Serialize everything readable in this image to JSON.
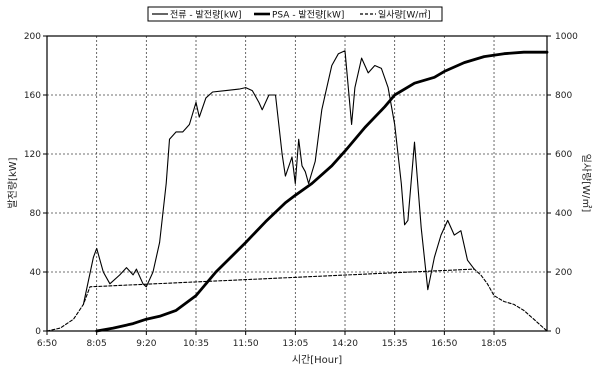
{
  "chart_data": {
    "type": "line",
    "title": "",
    "xlabel": "시간[Hour]",
    "ylabel": "발전량[kW]",
    "y2label": "일사량[W/㎡]",
    "x_ticks": [
      "6:50",
      "8:05",
      "9:20",
      "10:35",
      "11:50",
      "13:05",
      "14:20",
      "15:35",
      "16:50",
      "18:05"
    ],
    "xlim": [
      "6:50",
      "19:25"
    ],
    "ylim": [
      0,
      200
    ],
    "y_ticks": [
      0,
      40,
      80,
      120,
      160,
      200
    ],
    "y2lim": [
      0,
      1000
    ],
    "y2_ticks": [
      0,
      200,
      400,
      600,
      800,
      1000
    ],
    "grid": true,
    "legend_position": "top",
    "series": [
      {
        "name": "전류 - 발전량[kW]",
        "axis": "left",
        "style": "thin-solid",
        "color": "#000000",
        "points": [
          [
            "7:45",
            18
          ],
          [
            "8:00",
            50
          ],
          [
            "8:05",
            56
          ],
          [
            "8:15",
            40
          ],
          [
            "8:25",
            32
          ],
          [
            "8:40",
            38
          ],
          [
            "8:50",
            43
          ],
          [
            "9:00",
            38
          ],
          [
            "9:05",
            42
          ],
          [
            "9:15",
            32
          ],
          [
            "9:20",
            30
          ],
          [
            "9:30",
            40
          ],
          [
            "9:40",
            60
          ],
          [
            "9:50",
            100
          ],
          [
            "9:55",
            130
          ],
          [
            "10:05",
            135
          ],
          [
            "10:15",
            135
          ],
          [
            "10:25",
            140
          ],
          [
            "10:35",
            155
          ],
          [
            "10:40",
            145
          ],
          [
            "10:50",
            158
          ],
          [
            "11:00",
            162
          ],
          [
            "11:20",
            163
          ],
          [
            "11:40",
            164
          ],
          [
            "11:50",
            165
          ],
          [
            "12:00",
            163
          ],
          [
            "12:10",
            155
          ],
          [
            "12:15",
            150
          ],
          [
            "12:25",
            160
          ],
          [
            "12:35",
            160
          ],
          [
            "12:45",
            120
          ],
          [
            "12:50",
            105
          ],
          [
            "13:00",
            118
          ],
          [
            "13:05",
            100
          ],
          [
            "13:10",
            130
          ],
          [
            "13:15",
            112
          ],
          [
            "13:20",
            108
          ],
          [
            "13:25",
            100
          ],
          [
            "13:35",
            115
          ],
          [
            "13:45",
            150
          ],
          [
            "13:50",
            160
          ],
          [
            "14:00",
            180
          ],
          [
            "14:10",
            188
          ],
          [
            "14:20",
            190
          ],
          [
            "14:25",
            165
          ],
          [
            "14:30",
            140
          ],
          [
            "14:35",
            165
          ],
          [
            "14:45",
            185
          ],
          [
            "14:55",
            175
          ],
          [
            "15:05",
            180
          ],
          [
            "15:15",
            178
          ],
          [
            "15:25",
            165
          ],
          [
            "15:35",
            140
          ],
          [
            "15:45",
            100
          ],
          [
            "15:50",
            72
          ],
          [
            "15:55",
            75
          ],
          [
            "16:05",
            128
          ],
          [
            "16:15",
            70
          ],
          [
            "16:25",
            28
          ],
          [
            "16:35",
            50
          ],
          [
            "16:45",
            65
          ],
          [
            "16:55",
            75
          ],
          [
            "17:05",
            65
          ],
          [
            "17:15",
            68
          ],
          [
            "17:25",
            48
          ],
          [
            "17:35",
            42
          ]
        ]
      },
      {
        "name": "PSA - 발전량[kW]",
        "axis": "left",
        "style": "thick-solid",
        "color": "#000000",
        "points": [
          [
            "8:05",
            0
          ],
          [
            "8:30",
            2
          ],
          [
            "9:00",
            5
          ],
          [
            "9:20",
            8
          ],
          [
            "9:40",
            10
          ],
          [
            "10:05",
            14
          ],
          [
            "10:35",
            24
          ],
          [
            "11:05",
            40
          ],
          [
            "11:50",
            60
          ],
          [
            "12:20",
            74
          ],
          [
            "12:50",
            87
          ],
          [
            "13:05",
            92
          ],
          [
            "13:30",
            100
          ],
          [
            "14:00",
            112
          ],
          [
            "14:20",
            122
          ],
          [
            "14:50",
            138
          ],
          [
            "15:20",
            152
          ],
          [
            "15:35",
            160
          ],
          [
            "16:05",
            168
          ],
          [
            "16:35",
            172
          ],
          [
            "16:50",
            176
          ],
          [
            "17:20",
            182
          ],
          [
            "17:50",
            186
          ],
          [
            "18:20",
            188
          ],
          [
            "18:50",
            189
          ],
          [
            "19:25",
            189
          ]
        ]
      },
      {
        "name": "일사량[W/㎡]",
        "axis": "right",
        "style": "dashed",
        "color": "#000000",
        "points": [
          [
            "6:50",
            0
          ],
          [
            "7:10",
            10
          ],
          [
            "7:30",
            40
          ],
          [
            "7:45",
            90
          ],
          [
            "7:55",
            150
          ],
          [
            "17:35",
            210
          ],
          [
            "17:45",
            190
          ],
          [
            "17:55",
            160
          ],
          [
            "18:05",
            120
          ],
          [
            "18:20",
            100
          ],
          [
            "18:35",
            90
          ],
          [
            "18:50",
            70
          ],
          [
            "19:05",
            40
          ],
          [
            "19:25",
            0
          ]
        ]
      }
    ]
  }
}
